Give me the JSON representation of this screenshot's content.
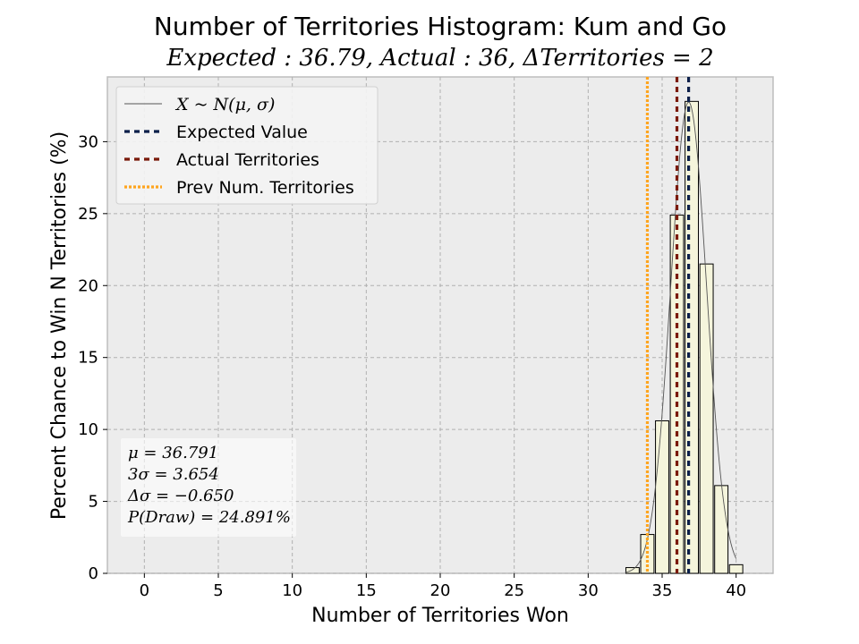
{
  "chart_data": {
    "type": "bar",
    "title": "Number of Territories Histogram: Kum and Go",
    "subtitle": "Expected : 36.79, Actual : 36, ΔTerritories = 2",
    "xlabel": "Number of Territories Won",
    "ylabel": "Percent Chance to Win N Territories (%)",
    "xlim": [
      -2.5,
      42.5
    ],
    "ylim": [
      0,
      34.5
    ],
    "xticks": [
      0,
      5,
      10,
      15,
      20,
      25,
      30,
      35,
      40
    ],
    "yticks": [
      0,
      5,
      10,
      15,
      20,
      25,
      30
    ],
    "grid": true,
    "legend_placement": "top-left",
    "bars": {
      "x": [
        33,
        34,
        35,
        36,
        37,
        38,
        39,
        40
      ],
      "values": [
        0.4,
        2.7,
        10.6,
        24.9,
        32.8,
        21.5,
        6.1,
        0.6
      ]
    },
    "normal_curve": {
      "mu": 36.791,
      "sigma": 1.218
    },
    "vlines": [
      {
        "name": "Expected Value",
        "x": 36.79,
        "color": "#0b1f4a",
        "style": "dashed"
      },
      {
        "name": "Actual Territories",
        "x": 36,
        "color": "#7a1a0a",
        "style": "dashed"
      },
      {
        "name": "Prev Num. Territories",
        "x": 34,
        "color": "#ffa51f",
        "style": "dotted"
      }
    ],
    "legend": [
      {
        "label": "X ~ N(μ, σ)",
        "kind": "thin",
        "color": "#555555"
      },
      {
        "label": "Expected Value",
        "kind": "dashed",
        "color": "#0b1f4a"
      },
      {
        "label": "Actual Territories",
        "kind": "dashed",
        "color": "#7a1a0a"
      },
      {
        "label": "Prev Num. Territories",
        "kind": "dotted",
        "color": "#ffa51f"
      }
    ],
    "stats": [
      "μ = 36.791",
      "3σ = 3.654",
      "Δσ = −0.650",
      "P(Draw) = 24.891%"
    ],
    "colors": {
      "bar_fill": "#f5f5dc",
      "bar_edge": "#000000",
      "plot_bg": "#ececec",
      "grid": "#b0b0b0"
    }
  }
}
